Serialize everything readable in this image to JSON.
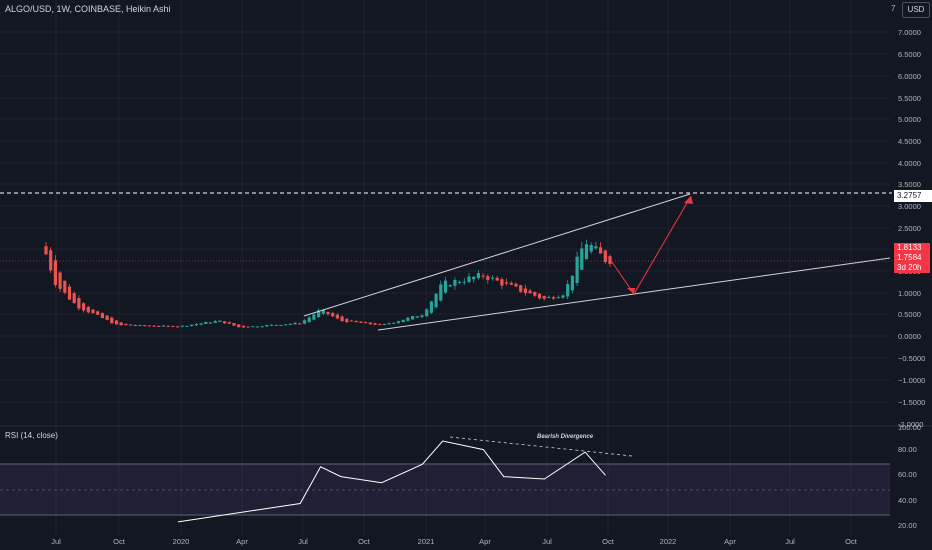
{
  "header": {
    "title": "ALGO/USD, 1W, COINBASE, Heikin Ashi",
    "rsi_title": "RSI (14, close)",
    "currency": "USD"
  },
  "price_axis": {
    "ticks": [
      "7.0000",
      "6.5000",
      "6.0000",
      "5.5000",
      "5.0000",
      "4.5000",
      "4.0000",
      "3.5000",
      "3.0000",
      "2.5000",
      "2.0000",
      "1.5000",
      "1.0000",
      "0.5000",
      "0.0000",
      "−0.5000",
      "−1.0000",
      "−1.5000"
    ],
    "top_label": "7",
    "dashed_level": "3.2757",
    "current_1": "1.8133",
    "current_2": "1.7584",
    "countdown": "3d 20h"
  },
  "rsi_axis": {
    "ticks": [
      "100.00",
      "80.00",
      "60.00",
      "40.00",
      "20.00"
    ],
    "partial_label": "-2.0000"
  },
  "time_axis": {
    "labels": [
      "Jul",
      "Oct",
      "2020",
      "Apr",
      "Jul",
      "Oct",
      "2021",
      "Apr",
      "Jul",
      "Oct",
      "2022",
      "Apr",
      "Jul",
      "Oct"
    ]
  },
  "annotation": {
    "bearish_divergence": "Bearish Divergence"
  },
  "colors": {
    "background": "#131722",
    "up": "#26a69a",
    "down": "#ef5350",
    "line": "#d1d4dc",
    "arrow": "#f23645",
    "rsi_band": "#7e57c2",
    "rsi_line": "#ffffff"
  },
  "chart_data": {
    "type": "line",
    "title": "ALGO/USD, 1W, COINBASE, Heikin Ashi",
    "y_unit": "USD",
    "ylim": [
      -2.0,
      7.2
    ],
    "price_points": [
      {
        "t": "2019-06",
        "v": 3.27
      },
      {
        "t": "2019-06",
        "v": 2.6
      },
      {
        "t": "2019-07",
        "v": 1.2
      },
      {
        "t": "2019-08",
        "v": 0.7
      },
      {
        "t": "2019-10",
        "v": 0.25
      },
      {
        "t": "2020-01",
        "v": 0.22
      },
      {
        "t": "2020-03",
        "v": 0.35
      },
      {
        "t": "2020-04",
        "v": 0.2
      },
      {
        "t": "2020-07",
        "v": 0.3
      },
      {
        "t": "2020-08",
        "v": 0.6
      },
      {
        "t": "2020-09",
        "v": 0.35
      },
      {
        "t": "2020-11",
        "v": 0.25
      },
      {
        "t": "2021-01",
        "v": 0.5
      },
      {
        "t": "2021-02",
        "v": 1.2
      },
      {
        "t": "2021-04",
        "v": 1.4
      },
      {
        "t": "2021-05",
        "v": 1.2
      },
      {
        "t": "2021-07",
        "v": 0.85
      },
      {
        "t": "2021-08",
        "v": 1.0
      },
      {
        "t": "2021-09",
        "v": 2.2
      },
      {
        "t": "2021-10",
        "v": 1.76
      }
    ],
    "rsi_ylim": [
      20,
      100
    ],
    "rsi_points": [
      {
        "t": "2020-01",
        "v": 25
      },
      {
        "t": "2020-03",
        "v": 30
      },
      {
        "t": "2020-05",
        "v": 35
      },
      {
        "t": "2020-07",
        "v": 40
      },
      {
        "t": "2020-08",
        "v": 70
      },
      {
        "t": "2020-09",
        "v": 62
      },
      {
        "t": "2020-11",
        "v": 57
      },
      {
        "t": "2021-01",
        "v": 72
      },
      {
        "t": "2021-02",
        "v": 91
      },
      {
        "t": "2021-04",
        "v": 84
      },
      {
        "t": "2021-05",
        "v": 62
      },
      {
        "t": "2021-07",
        "v": 60
      },
      {
        "t": "2021-09",
        "v": 82
      },
      {
        "t": "2021-10",
        "v": 63
      }
    ]
  }
}
